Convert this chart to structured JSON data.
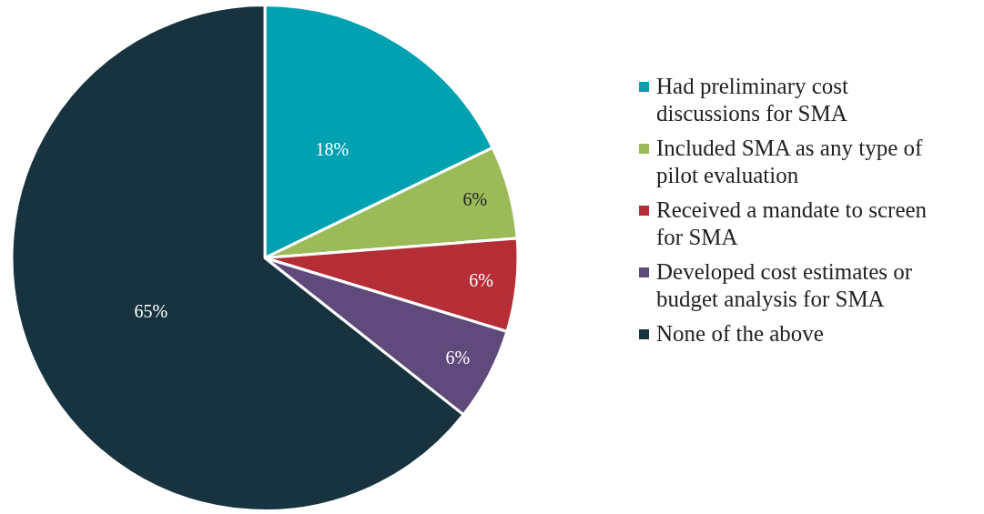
{
  "chart_data": {
    "type": "pie",
    "categories": [
      "Had preliminary cost discussions for SMA",
      "Included SMA as any type of pilot evaluation",
      "Received a mandate to screen for SMA",
      "Developed cost estimates or budget analysis for SMA",
      "None of the above"
    ],
    "values": [
      18,
      6,
      6,
      6,
      65
    ],
    "colors": [
      "#00a2b1",
      "#9bbb59",
      "#b52e36",
      "#604a7b",
      "#17333f"
    ],
    "value_labels": [
      "18%",
      "6%",
      "6%",
      "6%",
      "65%"
    ],
    "legend": "right"
  }
}
